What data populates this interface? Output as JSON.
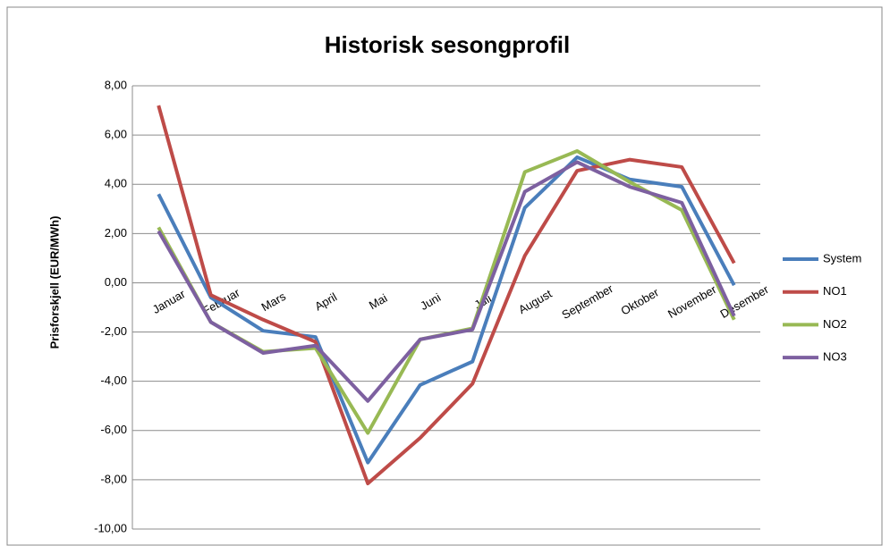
{
  "chart_data": {
    "type": "line",
    "title": "Historisk sesongprofil",
    "y_label": "Prisforskjell (EUR/MWh)",
    "categories": [
      "Januar",
      "Februar",
      "Mars",
      "April",
      "Mai",
      "Juni",
      "Juli",
      "August",
      "September",
      "Oktober",
      "November",
      "Desember"
    ],
    "series": [
      {
        "name": "System",
        "color": "#4a7ebb",
        "values": [
          3.6,
          -0.6,
          -1.95,
          -2.2,
          -7.3,
          -4.15,
          -3.2,
          3.05,
          5.1,
          4.2,
          3.9,
          -0.1
        ]
      },
      {
        "name": "NO1",
        "color": "#be4b48",
        "values": [
          7.2,
          -0.5,
          -1.5,
          -2.4,
          -8.15,
          -6.3,
          -4.1,
          1.1,
          4.55,
          5.0,
          4.7,
          0.8
        ]
      },
      {
        "name": "NO2",
        "color": "#98b954",
        "values": [
          2.25,
          -1.6,
          -2.8,
          -2.65,
          -6.1,
          -2.3,
          -1.85,
          4.5,
          5.35,
          4.1,
          2.95,
          -1.5
        ]
      },
      {
        "name": "NO3",
        "color": "#7d60a0",
        "values": [
          2.1,
          -1.6,
          -2.85,
          -2.55,
          -4.8,
          -2.3,
          -1.9,
          3.7,
          4.9,
          3.9,
          3.25,
          -1.35
        ]
      }
    ],
    "ylim": [
      -10,
      8
    ],
    "yticks": [
      {
        "value": -10,
        "label": "-10,00"
      },
      {
        "value": -8,
        "label": "-8,00"
      },
      {
        "value": -6,
        "label": "-6,00"
      },
      {
        "value": -4,
        "label": "-4,00"
      },
      {
        "value": -2,
        "label": "-2,00"
      },
      {
        "value": 0,
        "label": "0,00"
      },
      {
        "value": 2,
        "label": "2,00"
      },
      {
        "value": 4,
        "label": "4,00"
      },
      {
        "value": 6,
        "label": "6,00"
      },
      {
        "value": 8,
        "label": "8,00"
      }
    ],
    "grid": true,
    "legend": "right"
  }
}
